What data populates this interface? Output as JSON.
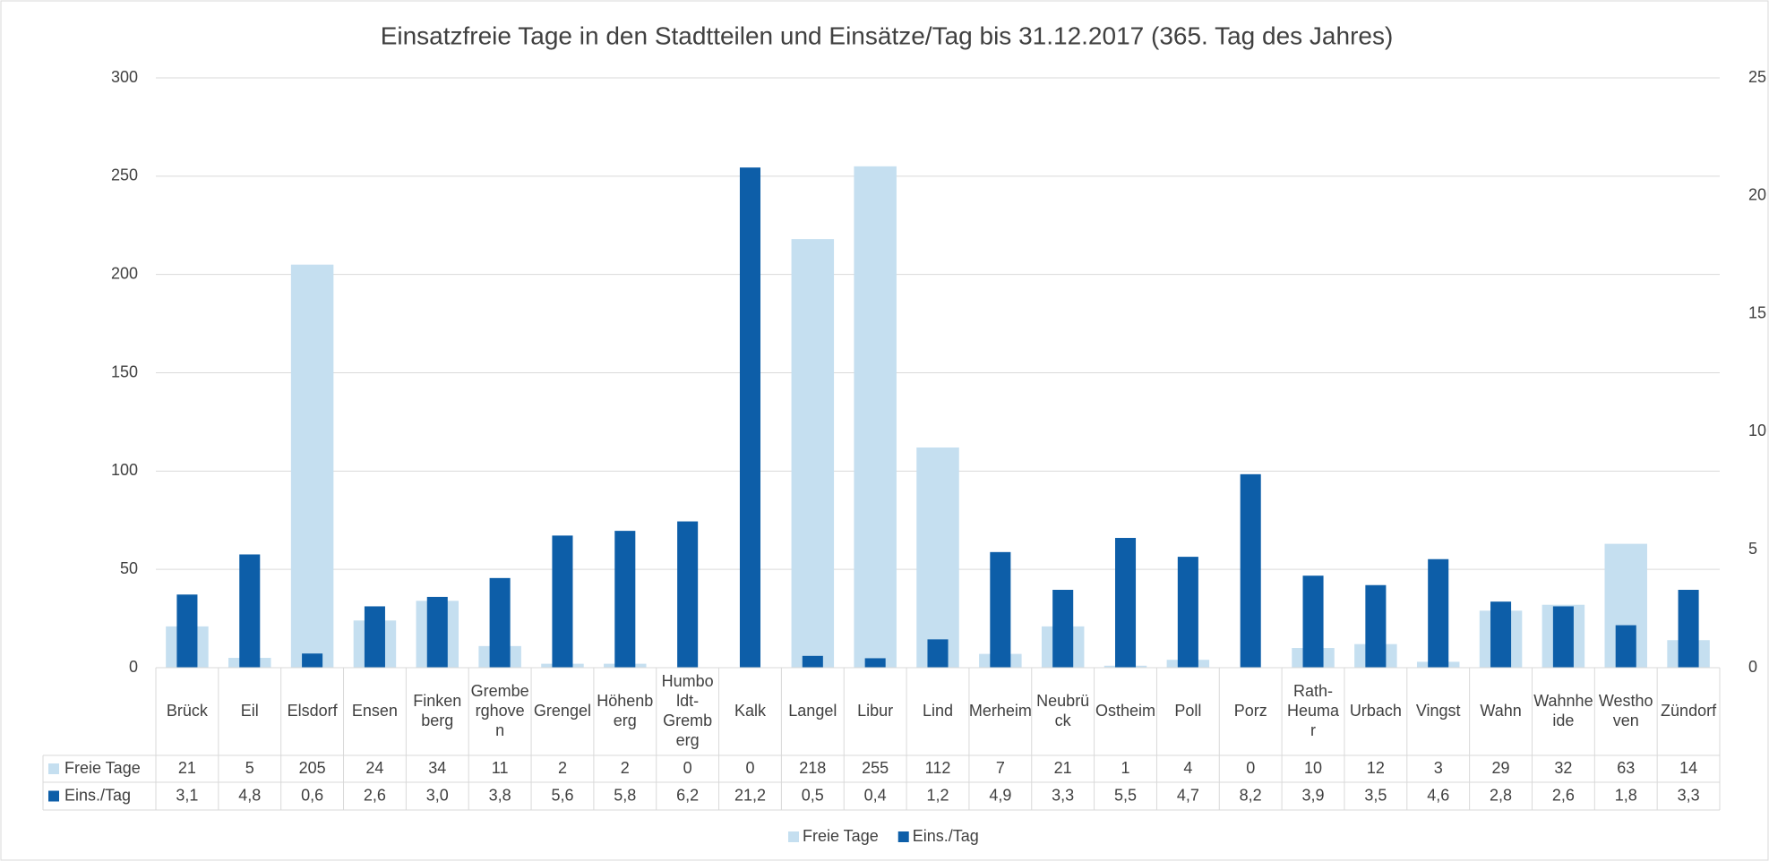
{
  "chart_data": {
    "type": "bar",
    "title": "Einsatzfreie Tage in den Stadtteilen und Einsätze/Tag bis 31.12.2017 (365. Tag des Jahres)",
    "categories": [
      "Brück",
      "Eil",
      "Elsdorf",
      "Ensen",
      "Finkenberg",
      "Gremberghoven",
      "Grengel",
      "Höhenberg",
      "Humboldt-Gremberg",
      "Kalk",
      "Langel",
      "Libur",
      "Lind",
      "Merheim",
      "Neubrück",
      "Ostheim",
      "Poll",
      "Porz",
      "Rath-Heumar",
      "Urbach",
      "Vingst",
      "Wahn",
      "Wahnheide",
      "Westhoven",
      "Zündorf"
    ],
    "series": [
      {
        "name": "Freie Tage",
        "color": "#c5dff0",
        "values": [
          21,
          5,
          205,
          24,
          34,
          11,
          2,
          2,
          0,
          0,
          218,
          255,
          112,
          7,
          21,
          1,
          4,
          0,
          10,
          12,
          3,
          29,
          32,
          63,
          14
        ]
      },
      {
        "name": "Eins./Tag",
        "color": "#0d5ea8",
        "axis": "y2",
        "values": [
          3.1,
          4.8,
          0.6,
          2.6,
          3.0,
          3.8,
          5.6,
          5.8,
          6.2,
          21.2,
          0.5,
          0.4,
          1.2,
          4.9,
          3.3,
          5.5,
          4.7,
          8.2,
          3.9,
          3.5,
          4.6,
          2.8,
          2.6,
          1.8,
          3.3
        ],
        "value_labels": [
          "3,1",
          "4,8",
          "0,6",
          "2,6",
          "3,0",
          "3,8",
          "5,6",
          "5,8",
          "6,2",
          "21,2",
          "0,5",
          "0,4",
          "1,2",
          "4,9",
          "3,3",
          "5,5",
          "4,7",
          "8,2",
          "3,9",
          "3,5",
          "4,6",
          "2,8",
          "2,6",
          "1,8",
          "3,3"
        ]
      }
    ],
    "ylim": [
      0,
      300
    ],
    "yticks": [
      0,
      50,
      100,
      150,
      200,
      250,
      300
    ],
    "y2lim": [
      0,
      25
    ],
    "y2ticks": [
      0,
      5,
      10,
      15,
      20,
      25
    ],
    "grid": true,
    "legend": "bottom"
  }
}
